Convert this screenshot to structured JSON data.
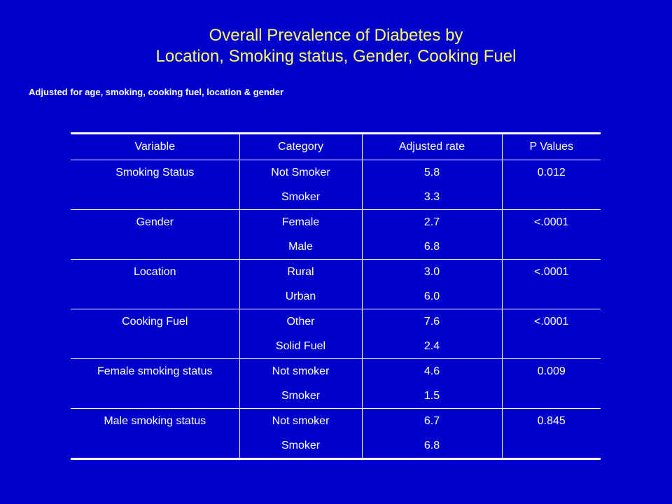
{
  "title": {
    "line1": "Overall Prevalence of Diabetes by",
    "line2": "Location, Smoking status, Gender, Cooking Fuel"
  },
  "subtitle": "Adjusted for age, smoking, cooking fuel, location & gender",
  "colors": {
    "background": "#0000cc",
    "title": "#ffff66",
    "text": "#ffffff"
  },
  "table": {
    "headers": [
      "Variable",
      "Category",
      "Adjusted rate",
      "P Values"
    ],
    "groups": [
      {
        "variable": "Smoking Status",
        "p_value": "0.012",
        "rows": [
          {
            "category": "Not Smoker",
            "rate": "5.8"
          },
          {
            "category": "Smoker",
            "rate": "3.3"
          }
        ]
      },
      {
        "variable": "Gender",
        "p_value": "<.0001",
        "rows": [
          {
            "category": "Female",
            "rate": "2.7"
          },
          {
            "category": "Male",
            "rate": "6.8"
          }
        ]
      },
      {
        "variable": "Location",
        "p_value": "<.0001",
        "rows": [
          {
            "category": "Rural",
            "rate": "3.0"
          },
          {
            "category": "Urban",
            "rate": "6.0"
          }
        ]
      },
      {
        "variable": "Cooking Fuel",
        "p_value": "<.0001",
        "rows": [
          {
            "category": "Other",
            "rate": "7.6"
          },
          {
            "category": "Solid Fuel",
            "rate": "2.4"
          }
        ]
      },
      {
        "variable": "Female smoking status",
        "p_value": "0.009",
        "rows": [
          {
            "category": "Not smoker",
            "rate": "4.6"
          },
          {
            "category": "Smoker",
            "rate": "1.5"
          }
        ]
      },
      {
        "variable": "Male smoking status",
        "p_value": "0.845",
        "rows": [
          {
            "category": "Not smoker",
            "rate": "6.7"
          },
          {
            "category": "Smoker",
            "rate": "6.8"
          }
        ]
      }
    ]
  }
}
